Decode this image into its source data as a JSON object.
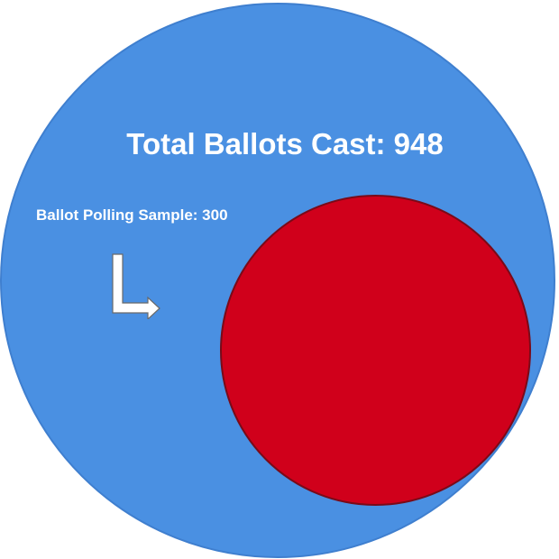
{
  "diagram": {
    "title": "Total Ballots Cast: 948",
    "sample_label": "Ballot Polling Sample: 300",
    "colors": {
      "outer_fill": "#4a90e2",
      "inner_fill": "#d0001b",
      "text": "#ffffff",
      "arrow_fill": "#ffffff"
    },
    "icons": {
      "pointer": "turn-right-arrow-icon"
    }
  }
}
